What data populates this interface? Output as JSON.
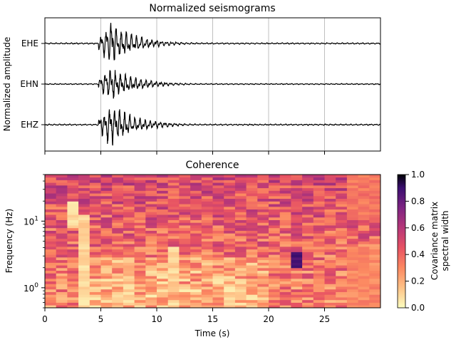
{
  "chart_data": [
    {
      "type": "line",
      "title": "Normalized seismograms",
      "ylabel": "Normalized amplitude",
      "xlim": [
        0,
        30
      ],
      "x_ticks": [
        0,
        5,
        10,
        15,
        20,
        25
      ],
      "grid": "x-only",
      "series": [
        {
          "name": "EHE",
          "offset": 2,
          "onset_s": 4.8,
          "peak_s": 5.9,
          "peak_amplitude": 0.5,
          "decay_end_s": 12
        },
        {
          "name": "EHN",
          "offset": 1,
          "onset_s": 4.8,
          "peak_s": 5.9,
          "peak_amplitude": 0.4,
          "decay_end_s": 12
        },
        {
          "name": "EHZ",
          "offset": 0,
          "onset_s": 4.8,
          "peak_s": 5.9,
          "peak_amplitude": 0.5,
          "decay_end_s": 12
        }
      ],
      "line_color": "#000000"
    },
    {
      "type": "heatmap",
      "title": "Coherence",
      "xlabel": "Time (s)",
      "ylabel": "Frequency (Hz)",
      "xlim": [
        0,
        30
      ],
      "ylim": [
        0.5,
        50
      ],
      "yscale": "log",
      "x_ticks": [
        "0",
        "5",
        "10",
        "15",
        "20",
        "25"
      ],
      "y_ticks": [
        {
          "value": 1,
          "label": "10^0"
        },
        {
          "value": 10,
          "label": "10^1"
        }
      ],
      "colormap": "magma_r",
      "colorbar": {
        "label_line1": "Covariance matrix",
        "label_line2": "spectral width",
        "range": [
          0,
          1
        ],
        "ticks": [
          "0.0",
          "0.2",
          "0.4",
          "0.6",
          "0.8",
          "1.0"
        ]
      },
      "time_bins": 30,
      "freq_bins": 50,
      "regions": [
        {
          "t_range": [
            3,
            4
          ],
          "f_range": [
            0.5,
            12
          ],
          "level": 0.1
        },
        {
          "t_range": [
            2,
            3
          ],
          "f_range": [
            8,
            20
          ],
          "level": 0.1
        },
        {
          "t_range": [
            11,
            12
          ],
          "f_range": [
            1,
            4
          ],
          "level": 0.1
        },
        {
          "t_range": [
            16,
            17
          ],
          "f_range": [
            0.5,
            1
          ],
          "level": 0.1
        },
        {
          "t_range": [
            22,
            23
          ],
          "f_range": [
            2,
            3.5
          ],
          "level": 0.9
        },
        {
          "t_range": [
            27,
            30
          ],
          "f_range": [
            10,
            50
          ],
          "level": 0.35
        },
        {
          "t_range": [
            27,
            30
          ],
          "f_range": [
            0.5,
            4
          ],
          "level": 0.3
        }
      ]
    }
  ],
  "labels": {
    "top_title": "Normalized seismograms",
    "top_ylabel": "Normalized amplitude",
    "channels": [
      "EHE",
      "EHN",
      "EHZ"
    ],
    "bottom_title": "Coherence",
    "bottom_xlabel": "Time (s)",
    "bottom_ylabel": "Frequency (Hz)",
    "x_ticks": [
      "0",
      "5",
      "10",
      "15",
      "20",
      "25"
    ],
    "cbar_ticks": [
      "0.0",
      "0.2",
      "0.4",
      "0.6",
      "0.8",
      "1.0"
    ],
    "cbar_label_1": "Covariance matrix",
    "cbar_label_2": "spectral width"
  }
}
